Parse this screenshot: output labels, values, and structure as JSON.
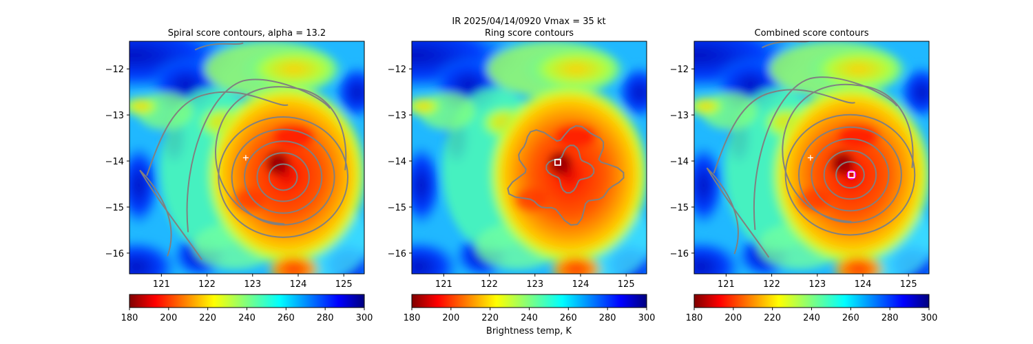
{
  "suptitle_line": "IR  2025/04/14/0920    Vmax = 35 kt",
  "colorbar_label": "Brightness temp, K",
  "colormap": [
    "#00007f",
    "#0000ff",
    "#007fff",
    "#00ffff",
    "#7fff7f",
    "#ffff00",
    "#ff7f00",
    "#ff0000",
    "#7f0000"
  ],
  "contour_color": "#808080",
  "chart_data": [
    {
      "type": "heatmap",
      "title": "Spiral score contours, alpha = 13.2",
      "xlim": [
        120.3,
        125.45
      ],
      "ylim": [
        -16.45,
        -11.4
      ],
      "xticks": [
        "121",
        "122",
        "123",
        "124",
        "125"
      ],
      "yticks": [
        "−12",
        "−13",
        "−14",
        "−15",
        "−16"
      ],
      "center_marker": {
        "x": 122.85,
        "y": -13.93,
        "symbol": "+"
      },
      "contour_center": {
        "x": 123.7,
        "y": -14.35
      },
      "colorbar": {
        "min": 180,
        "max": 300,
        "ticks": [
          "180",
          "200",
          "220",
          "240",
          "260",
          "280",
          "300"
        ]
      }
    },
    {
      "type": "heatmap",
      "title": "Ring score contours",
      "xlim": [
        120.3,
        125.45
      ],
      "ylim": [
        -16.45,
        -11.4
      ],
      "xticks": [
        "121",
        "122",
        "123",
        "124",
        "125"
      ],
      "yticks": [
        "−12",
        "−13",
        "−14",
        "−15",
        "−16"
      ],
      "center_marker": {
        "x": 123.5,
        "y": -14.03,
        "symbol": "square"
      },
      "colorbar": {
        "min": 180,
        "max": 300,
        "ticks": [
          "180",
          "200",
          "220",
          "240",
          "260",
          "280",
          "300"
        ]
      }
    },
    {
      "type": "heatmap",
      "title": "Combined score contours",
      "xlim": [
        120.3,
        125.45
      ],
      "ylim": [
        -16.45,
        -11.4
      ],
      "xticks": [
        "121",
        "122",
        "123",
        "124",
        "125"
      ],
      "yticks": [
        "−12",
        "−13",
        "−14",
        "−15",
        "−16"
      ],
      "center_marker": {
        "x": 123.75,
        "y": -14.3,
        "symbol": "square-circle"
      },
      "secondary_marker": {
        "x": 122.85,
        "y": -13.93,
        "symbol": "+"
      },
      "colorbar": {
        "min": 180,
        "max": 300,
        "ticks": [
          "180",
          "200",
          "220",
          "240",
          "260",
          "280",
          "300"
        ]
      }
    }
  ]
}
